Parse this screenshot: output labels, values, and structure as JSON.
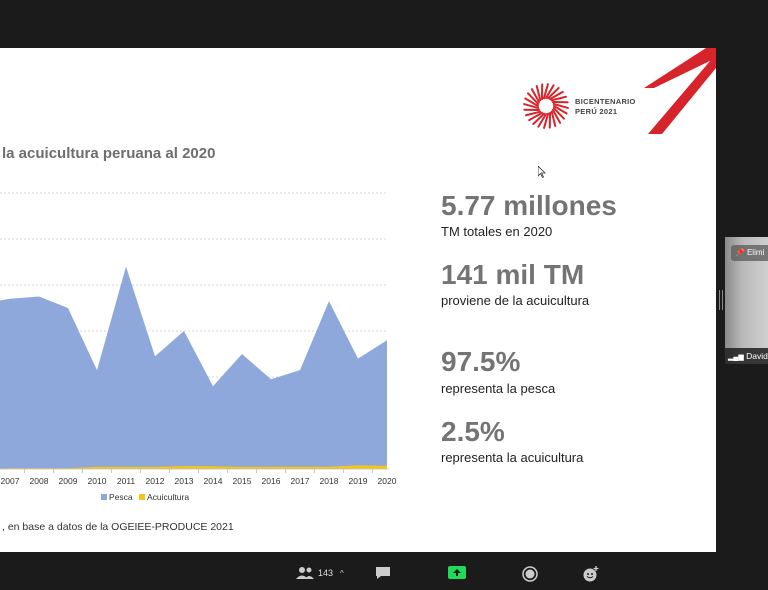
{
  "slide": {
    "title": "la acuicultura peruana al 2020",
    "logo_line1": "BICENTENARIO",
    "logo_line2": "PERÚ 2021",
    "source": ", en base a datos de la OGEIEE-PRODUCE 2021",
    "stats": [
      {
        "big": "5.77 millones",
        "small": "TM totales en 2020"
      },
      {
        "big": "141 mil TM",
        "small": "proviene de la acuicultura"
      },
      {
        "big": "97.5%",
        "small": "representa la pesca"
      },
      {
        "big": "2.5%",
        "small": "representa la acuicultura"
      }
    ],
    "colors": {
      "pesca": "#8fa8dc",
      "acuicultura": "#f5c518",
      "accent_red": "#d6242a"
    }
  },
  "chart_data": {
    "type": "area",
    "x": [
      "2007",
      "2008",
      "2009",
      "2010",
      "2011",
      "2012",
      "2013",
      "2014",
      "2015",
      "2016",
      "2017",
      "2018",
      "2019",
      "2020"
    ],
    "series": [
      {
        "name": "Pesca",
        "values": [
          7.4,
          7.5,
          7.0,
          4.3,
          8.8,
          4.9,
          6.0,
          3.6,
          5.0,
          3.9,
          4.3,
          7.3,
          4.8,
          5.6
        ]
      },
      {
        "name": "Acuicultura",
        "values": [
          0.04,
          0.04,
          0.04,
          0.09,
          0.09,
          0.09,
          0.13,
          0.12,
          0.09,
          0.1,
          0.1,
          0.1,
          0.16,
          0.14
        ]
      }
    ],
    "ylim": [
      0,
      12
    ],
    "grid": true,
    "legend": "bottom"
  },
  "toolbar": {
    "participants_count": "143",
    "icons": [
      "participants-icon",
      "chat-icon",
      "share-screen-icon",
      "record-icon",
      "reactions-icon"
    ]
  },
  "participant": {
    "name": "David",
    "pin_label": "Elimi"
  }
}
